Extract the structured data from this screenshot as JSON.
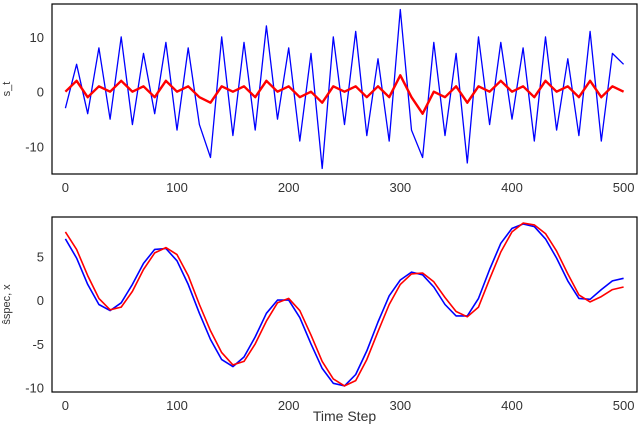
{
  "chart_data": [
    {
      "type": "line",
      "xlabel": "",
      "ylabel": "s_t",
      "xlim": [
        -12,
        512
      ],
      "ylim": [
        -15,
        16
      ],
      "xticks": [
        0,
        100,
        200,
        300,
        400,
        500
      ],
      "yticks": [
        -10,
        0,
        10
      ],
      "grid": false,
      "colors": {
        "series_1": "#0000ff",
        "series_2": "#ff0000"
      },
      "series": [
        {
          "color": "#0000ff",
          "description_of_values": "noisy signal sampled every 10 steps (approx.)",
          "x": [
            0,
            10,
            20,
            30,
            40,
            50,
            60,
            70,
            80,
            90,
            100,
            110,
            120,
            130,
            140,
            150,
            160,
            170,
            180,
            190,
            200,
            210,
            220,
            230,
            240,
            250,
            260,
            270,
            280,
            290,
            300,
            310,
            320,
            330,
            340,
            350,
            360,
            370,
            380,
            390,
            400,
            410,
            420,
            430,
            440,
            450,
            460,
            470,
            480,
            490,
            500
          ],
          "values": [
            -3,
            5,
            -4,
            8,
            -5,
            10,
            -6,
            7,
            -4,
            9,
            -7,
            8,
            -6,
            -12,
            10,
            -8,
            9,
            -7,
            12,
            -5,
            8,
            -9,
            7,
            -14,
            10,
            -6,
            11,
            -8,
            6,
            -9,
            15,
            -7,
            -12,
            9,
            -8,
            7,
            -13,
            10,
            -6,
            9,
            -5,
            8,
            -9,
            10,
            -7,
            6,
            -8,
            11,
            -9,
            7,
            5
          ]
        },
        {
          "color": "#ff0000",
          "description_of_values": "smoothed estimate sampled every 10 steps (approx.)",
          "x": [
            0,
            10,
            20,
            30,
            40,
            50,
            60,
            70,
            80,
            90,
            100,
            110,
            120,
            130,
            140,
            150,
            160,
            170,
            180,
            190,
            200,
            210,
            220,
            230,
            240,
            250,
            260,
            270,
            280,
            290,
            300,
            310,
            320,
            330,
            340,
            350,
            360,
            370,
            380,
            390,
            400,
            410,
            420,
            430,
            440,
            450,
            460,
            470,
            480,
            490,
            500
          ],
          "values": [
            0,
            2,
            -1,
            1,
            0,
            2,
            0,
            1,
            -1,
            2,
            0,
            1,
            -1,
            -2,
            1,
            0,
            1,
            -1,
            2,
            0,
            1,
            -1,
            0,
            -2,
            1,
            0,
            1,
            -1,
            1,
            -1,
            3,
            -1,
            -4,
            0,
            -1,
            1,
            -2,
            1,
            0,
            2,
            0,
            1,
            -1,
            2,
            0,
            1,
            -1,
            2,
            -1,
            1,
            0
          ]
        }
      ]
    },
    {
      "type": "line",
      "xlabel": "Time Step",
      "ylabel": "ŝspec, x",
      "xlim": [
        -12,
        512
      ],
      "ylim": [
        -10.5,
        9.5
      ],
      "xticks": [
        0,
        100,
        200,
        300,
        400,
        500
      ],
      "yticks": [
        -10,
        -5,
        0,
        5
      ],
      "grid": false,
      "colors": {
        "series_1": "#0000ff",
        "series_2": "#ff0000"
      },
      "series": [
        {
          "color": "#0000ff",
          "x": [
            0,
            10,
            20,
            30,
            40,
            50,
            60,
            70,
            80,
            90,
            100,
            110,
            120,
            130,
            140,
            150,
            160,
            170,
            180,
            190,
            200,
            210,
            220,
            230,
            240,
            250,
            260,
            270,
            280,
            290,
            300,
            310,
            320,
            330,
            340,
            350,
            360,
            370,
            380,
            390,
            400,
            410,
            420,
            430,
            440,
            450,
            460,
            470,
            480,
            490,
            500
          ],
          "values": [
            7.0,
            4.8,
            1.8,
            -0.5,
            -1.2,
            -0.3,
            1.8,
            4.2,
            5.8,
            5.9,
            4.5,
            1.8,
            -1.5,
            -4.5,
            -6.8,
            -7.6,
            -6.5,
            -4.2,
            -1.5,
            0.0,
            0.0,
            -2.0,
            -5.0,
            -7.8,
            -9.5,
            -9.8,
            -8.5,
            -5.8,
            -2.5,
            0.5,
            2.3,
            3.2,
            2.9,
            1.5,
            -0.5,
            -1.8,
            -1.8,
            0.2,
            3.5,
            6.5,
            8.2,
            8.7,
            8.4,
            7.0,
            4.8,
            2.2,
            0.2,
            0.1,
            1.2,
            2.2,
            2.5
          ],
          "note": "approximate sinusoidal trace"
        },
        {
          "color": "#ff0000",
          "x": [
            0,
            10,
            20,
            30,
            40,
            50,
            60,
            70,
            80,
            90,
            100,
            110,
            120,
            130,
            140,
            150,
            160,
            170,
            180,
            190,
            200,
            210,
            220,
            230,
            240,
            250,
            260,
            270,
            280,
            290,
            300,
            310,
            320,
            330,
            340,
            350,
            360,
            370,
            380,
            390,
            400,
            410,
            420,
            430,
            440,
            450,
            460,
            470,
            480,
            490,
            500
          ],
          "values": [
            7.8,
            5.8,
            2.8,
            0.2,
            -1.1,
            -0.8,
            1.0,
            3.5,
            5.4,
            6.0,
            5.2,
            2.8,
            -0.5,
            -3.5,
            -6.0,
            -7.4,
            -7.0,
            -5.0,
            -2.4,
            -0.3,
            0.2,
            -1.2,
            -4.0,
            -7.0,
            -9.0,
            -9.8,
            -9.2,
            -6.8,
            -3.6,
            -0.5,
            1.8,
            3.0,
            3.1,
            2.1,
            0.3,
            -1.3,
            -1.9,
            -0.8,
            2.4,
            5.5,
            7.8,
            8.8,
            8.6,
            7.6,
            5.6,
            3.0,
            0.6,
            -0.2,
            0.4,
            1.2,
            1.5
          ]
        }
      ]
    }
  ]
}
